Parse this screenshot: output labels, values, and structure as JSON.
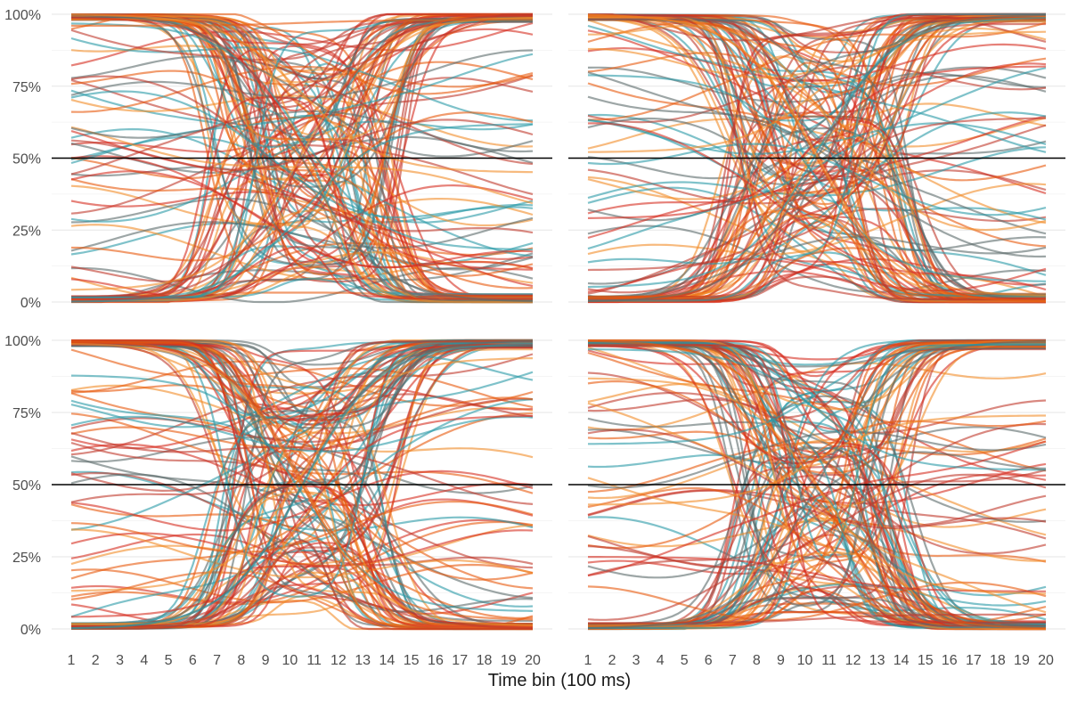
{
  "chart_data": {
    "type": "line",
    "xlabel": "Time bin (100 ms)",
    "x_ticks": [
      "1",
      "2",
      "3",
      "4",
      "5",
      "6",
      "7",
      "8",
      "9",
      "10",
      "11",
      "12",
      "13",
      "14",
      "15",
      "16",
      "17",
      "18",
      "19",
      "20"
    ],
    "xlim": [
      1,
      20
    ],
    "ylim": [
      0,
      100
    ],
    "y_ticks": [
      "0%",
      "25%",
      "50%",
      "75%",
      "100%"
    ],
    "y_tick_values": [
      0,
      25,
      50,
      75,
      100
    ],
    "reference_line": 50,
    "grid": "horizontal",
    "legend": "none",
    "series_colors": [
      "#2a9aa6",
      "#f28c28",
      "#d62d20",
      "#c0392b",
      "#5b6b6b",
      "#e8580c"
    ],
    "panels": [
      {
        "name": "top-left",
        "series": [
          {
            "x": [
              1,
              20
            ],
            "values": [
              97,
              18
            ]
          },
          {
            "x": [
              1,
              20
            ],
            "values": [
              4,
              99
            ]
          },
          {
            "x": [
              1,
              20
            ],
            "values": [
              99,
              11
            ]
          },
          {
            "x": [
              1,
              20
            ],
            "values": [
              0,
              100
            ]
          },
          {
            "x": [
              1,
              20
            ],
            "values": [
              100,
              0
            ]
          },
          {
            "x": [
              1,
              20
            ],
            "values": [
              96,
              98
            ]
          },
          {
            "x": [
              1,
              20
            ],
            "values": [
              0,
              62
            ]
          },
          {
            "x": [
              1,
              20
            ],
            "values": [
              100,
              45
            ]
          }
        ]
      },
      {
        "name": "top-right",
        "series": [
          {
            "x": [
              1,
              20
            ],
            "values": [
              79,
              7
            ]
          },
          {
            "x": [
              1,
              20
            ],
            "values": [
              52,
              94
            ]
          },
          {
            "x": [
              1,
              20
            ],
            "values": [
              29,
              82
            ]
          },
          {
            "x": [
              1,
              20
            ],
            "values": [
              11,
              64
            ]
          },
          {
            "x": [
              1,
              20
            ],
            "values": [
              0,
              100
            ]
          },
          {
            "x": [
              1,
              20
            ],
            "values": [
              100,
              0
            ]
          },
          {
            "x": [
              1,
              20
            ],
            "values": [
              5,
              99
            ]
          },
          {
            "x": [
              1,
              20
            ],
            "values": [
              100,
              2
            ]
          }
        ]
      },
      {
        "name": "bottom-left",
        "series": [
          {
            "x": [
              1,
              20
            ],
            "values": [
              88,
              6
            ]
          },
          {
            "x": [
              1,
              20
            ],
            "values": [
              13,
              94
            ]
          },
          {
            "x": [
              1,
              20
            ],
            "values": [
              4,
              74
            ]
          },
          {
            "x": [
              1,
              20
            ],
            "values": [
              100,
              0
            ]
          },
          {
            "x": [
              1,
              20
            ],
            "values": [
              0,
              100
            ]
          },
          {
            "x": [
              1,
              20
            ],
            "values": [
              100,
              3
            ]
          },
          {
            "x": [
              1,
              20
            ],
            "values": [
              0,
              99
            ]
          },
          {
            "x": [
              1,
              20
            ],
            "values": [
              99,
              1
            ]
          }
        ]
      },
      {
        "name": "bottom-right",
        "series": [
          {
            "x": [
              1,
              20
            ],
            "values": [
              97,
              55
            ]
          },
          {
            "x": [
              1,
              20
            ],
            "values": [
              43,
              74
            ]
          },
          {
            "x": [
              1,
              20
            ],
            "values": [
              25,
              13
            ]
          },
          {
            "x": [
              1,
              20
            ],
            "values": [
              2,
              5
            ]
          },
          {
            "x": [
              1,
              20
            ],
            "values": [
              0,
              100
            ]
          },
          {
            "x": [
              1,
              20
            ],
            "values": [
              100,
              0
            ]
          },
          {
            "x": [
              1,
              20
            ],
            "values": [
              64,
              99
            ]
          },
          {
            "x": [
              1,
              20
            ],
            "values": [
              87,
              12
            ]
          }
        ]
      }
    ]
  }
}
